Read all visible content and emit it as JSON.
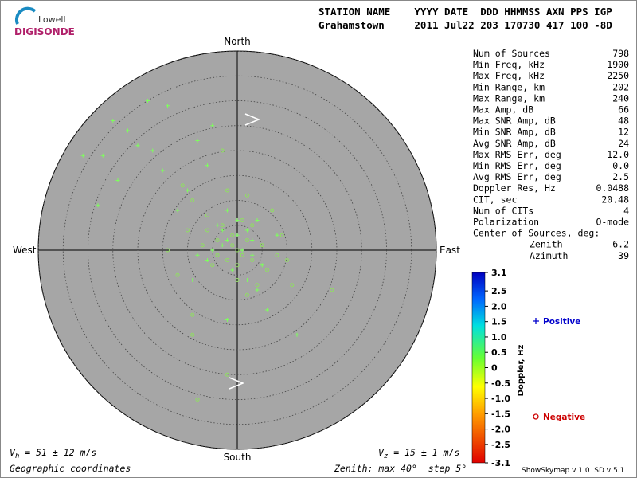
{
  "header": {
    "logo_top": "Lowell",
    "logo_bottom": "DIGISONDE",
    "labels": "STATION NAME    YYYY DATE  DDD HHMMSS AXN PPS IGP",
    "values": "Grahamstown     2011 Jul22 203 170730 417 100 -8D"
  },
  "stats": {
    "rows": [
      [
        "Num of Sources",
        798
      ],
      [
        "Min Freq, kHz",
        1900
      ],
      [
        "Max Freq, kHz",
        2250
      ],
      [
        "Min Range, km",
        202
      ],
      [
        "Max Range, km",
        240
      ],
      [
        "Max Amp, dB",
        66
      ],
      [
        "Max SNR Amp, dB",
        48
      ],
      [
        "Min SNR Amp, dB",
        12
      ],
      [
        "Avg SNR Amp, dB",
        24
      ],
      [
        "Max RMS Err, deg",
        "12.0"
      ],
      [
        "Min RMS Err, deg",
        "0.0"
      ],
      [
        "Avg RMS Err, deg",
        2.5
      ],
      [
        "Doppler Res, Hz",
        0.0488
      ],
      [
        "CIT, sec",
        20.48
      ],
      [
        "Num of CITs",
        4
      ],
      [
        "Polarization",
        "O-mode"
      ]
    ],
    "center_title": "Center of Sources, deg:",
    "center_rows": [
      [
        "Zenith",
        6.2
      ],
      [
        "Azimuth",
        39
      ]
    ]
  },
  "chart_data": {
    "type": "skymap",
    "directions": {
      "north": "North",
      "south": "South",
      "east": "East",
      "west": "West"
    },
    "rlim": [
      0,
      40
    ],
    "rticks": [
      5,
      10,
      15,
      20,
      25,
      30,
      35,
      40
    ],
    "series": [
      {
        "name": "Positive",
        "marker": "+",
        "legend_color": "#0000cc",
        "color": "#7dff5c",
        "x": [
          -27,
          -31,
          -25,
          -18,
          -14,
          -22,
          -20,
          -17,
          -24,
          -28,
          -15,
          -10,
          -8,
          -5,
          -6,
          -12,
          -4,
          -2,
          0,
          2,
          -3,
          -6,
          3,
          -1,
          4,
          -9,
          6,
          -2,
          12,
          4,
          8,
          -8,
          5,
          -2,
          1,
          0,
          -3,
          2,
          -5,
          3
        ],
        "values": [
          19,
          19,
          26,
          30,
          29,
          24,
          21,
          20,
          14,
          9,
          16,
          12,
          22,
          25,
          17,
          8,
          5,
          2,
          3,
          4,
          1,
          -2,
          -1,
          -4,
          -8,
          -6,
          -12,
          -14,
          -17,
          6,
          3,
          -1,
          -3,
          8,
          0,
          6,
          4,
          -6,
          0,
          2
        ]
      },
      {
        "name": "Negative",
        "marker": "o",
        "legend_color": "#cc0000",
        "color": "#8fe060",
        "x": [
          -1,
          -3,
          2,
          0,
          -4,
          -6,
          1,
          -2,
          3,
          5,
          -7,
          -5,
          6,
          -10,
          -12,
          0,
          2,
          -9,
          -9,
          -2,
          -8,
          -9,
          9,
          7,
          4,
          -14,
          10,
          11,
          19,
          -2,
          2,
          -11,
          -3,
          0,
          -1,
          1,
          3,
          -4,
          -6,
          8
        ],
        "values": [
          3,
          5,
          2,
          0,
          2,
          4,
          6,
          -2,
          5,
          1,
          1,
          -3,
          -4,
          4,
          -5,
          -6,
          -9,
          10,
          -17,
          -25,
          -30,
          -13,
          3,
          8,
          -7,
          0,
          -2,
          -7,
          -8,
          12,
          11,
          13,
          20,
          -3,
          1,
          -1,
          -2,
          -1,
          7,
          -1
        ]
      }
    ],
    "colorbar": {
      "label": "Doppler, Hz",
      "clim": [
        -3.1,
        3.1
      ],
      "ticks": [
        3.1,
        2.5,
        {
          "value": 2,
          "label": "2.0"
        },
        1.5,
        {
          "value": 1,
          "label": "1.0"
        },
        0.5,
        0,
        -0.5,
        {
          "value": -1,
          "label": "-1.0"
        },
        -1.5,
        {
          "value": -2,
          "label": "-2.0"
        },
        -2.5,
        -3.1
      ]
    },
    "vh": {
      "symbol": "V",
      "sub": "h",
      "text": " = 51 ± 12 m/s"
    },
    "vz": {
      "symbol": "V",
      "sub": "z",
      "text": " = 15 ± 1 m/s"
    },
    "coords": "Geographic coordinates",
    "zenith_label": "Zenith: max 40°  step 5°",
    "version": "ShowSkymap v 1.0  SD v 5.1"
  }
}
